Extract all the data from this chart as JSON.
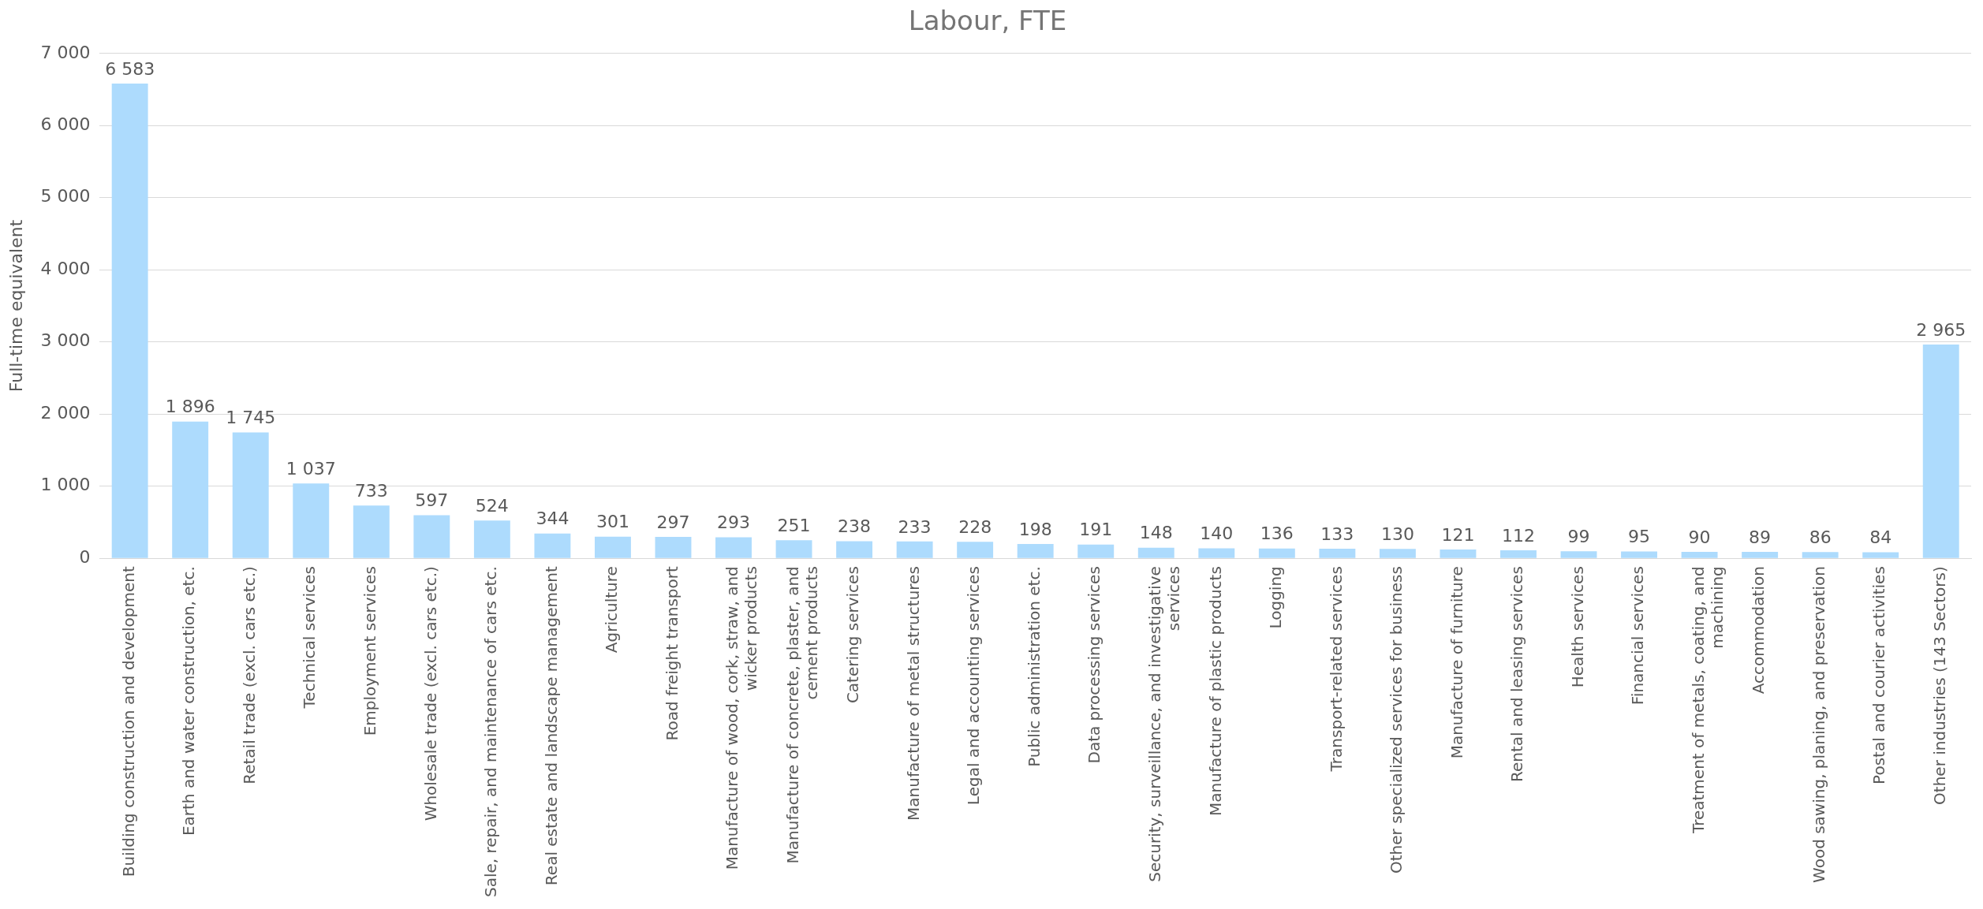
{
  "chart_data": {
    "type": "bar",
    "title": "Labour, FTE",
    "ylabel": "Full-time equivalent",
    "categories": [
      "Building construction and development",
      "Earth and water construction, etc.",
      "Retail trade (excl. cars etc.)",
      "Technical services",
      "Employment services",
      "Wholesale trade (excl. cars etc.)",
      "Sale, repair, and maintenance of cars etc.",
      "Real estate and landscape management",
      "Agriculture",
      "Road freight transport",
      "Manufacture of wood, cork, straw, and wicker products",
      "Manufacture of concrete, plaster, and cement products",
      "Catering services",
      "Manufacture of metal structures",
      "Legal and accounting services",
      "Public administration etc.",
      "Data processing services",
      "Security, surveillance, and investigative services",
      "Manufacture of plastic products",
      "Logging",
      "Transport-related services",
      "Other specialized services for business",
      "Manufacture of furniture",
      "Rental and leasing services",
      "Health services",
      "Financial services",
      "Treatment of metals, coating, and machining",
      "Accommodation",
      "Wood sawing, planing, and preservation",
      "Postal and courier activities",
      "Other industries (143 Sectors)"
    ],
    "values": [
      6583,
      1896,
      1745,
      1037,
      733,
      597,
      524,
      344,
      301,
      297,
      293,
      251,
      238,
      233,
      228,
      198,
      191,
      148,
      140,
      136,
      133,
      130,
      121,
      112,
      99,
      95,
      90,
      89,
      86,
      84,
      2965
    ],
    "value_labels": [
      "6 583",
      "1 896",
      "1 745",
      "1 037",
      "733",
      "597",
      "524",
      "344",
      "301",
      "297",
      "293",
      "251",
      "238",
      "233",
      "228",
      "198",
      "191",
      "148",
      "140",
      "136",
      "133",
      "130",
      "121",
      "112",
      "99",
      "95",
      "90",
      "89",
      "86",
      "84",
      "2 965"
    ],
    "color": "#addbfd",
    "ylim": [
      0,
      7000
    ],
    "yticks": [
      {
        "value": 0,
        "label": "0"
      },
      {
        "value": 1000,
        "label": "1 000"
      },
      {
        "value": 2000,
        "label": "2 000"
      },
      {
        "value": 3000,
        "label": "3 000"
      },
      {
        "value": 4000,
        "label": "4 000"
      },
      {
        "value": 5000,
        "label": "5 000"
      },
      {
        "value": 6000,
        "label": "6 000"
      },
      {
        "value": 7000,
        "label": "7 000"
      }
    ],
    "grid": "y",
    "legend": false
  }
}
